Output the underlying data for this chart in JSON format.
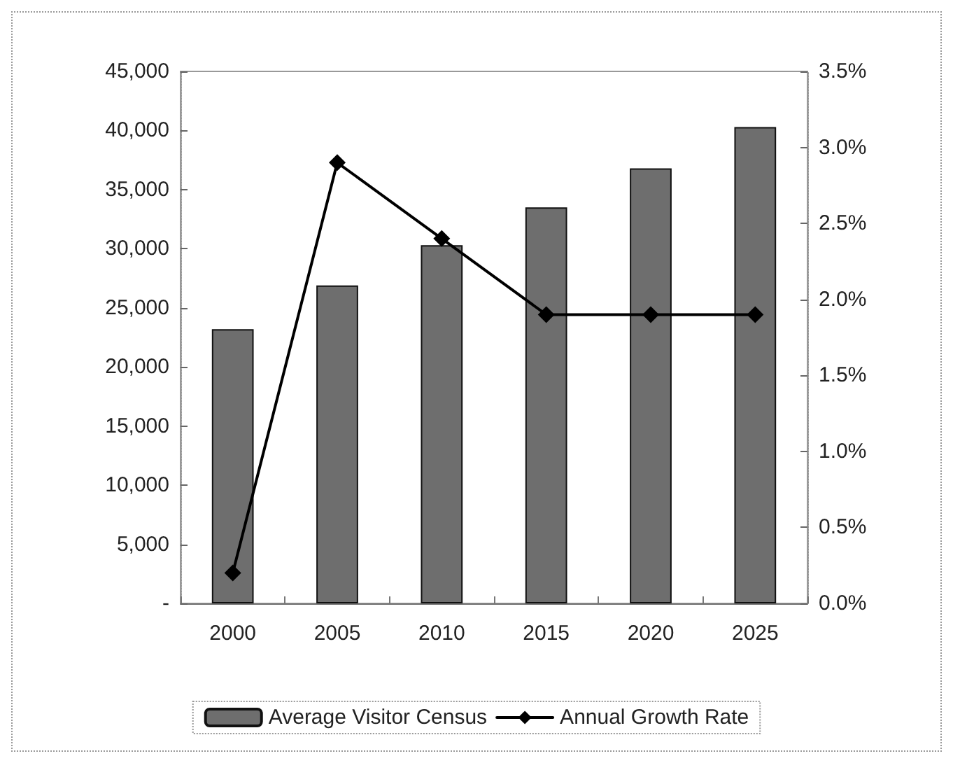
{
  "chart_data": {
    "type": "bar",
    "categories": [
      "2000",
      "2005",
      "2010",
      "2015",
      "2020",
      "2025"
    ],
    "series": [
      {
        "name": "Average Visitor Census",
        "color": "#6e6e6e",
        "values": [
          23200,
          26900,
          30300,
          33500,
          36800,
          40300
        ]
      },
      {
        "name": "Annual Growth Rate",
        "type": "line",
        "axis": "y2",
        "color": "#000000",
        "values": [
          0.2,
          2.9,
          2.4,
          1.9,
          1.9,
          1.9
        ]
      }
    ],
    "ylim": [
      0,
      45000
    ],
    "yticks": [
      {
        "value": 0,
        "label": "-"
      },
      {
        "value": 5000,
        "label": "5,000"
      },
      {
        "value": 10000,
        "label": "10,000"
      },
      {
        "value": 15000,
        "label": "15,000"
      },
      {
        "value": 20000,
        "label": "20,000"
      },
      {
        "value": 25000,
        "label": "25,000"
      },
      {
        "value": 30000,
        "label": "30,000"
      },
      {
        "value": 35000,
        "label": "35,000"
      },
      {
        "value": 40000,
        "label": "40,000"
      },
      {
        "value": 45000,
        "label": "45,000"
      }
    ],
    "y2lim": [
      0,
      3.5
    ],
    "y2ticks": [
      {
        "value": 0,
        "label": "0.0%"
      },
      {
        "value": 0.5,
        "label": "0.5%"
      },
      {
        "value": 1,
        "label": "1.0%"
      },
      {
        "value": 1.5,
        "label": "1.5%"
      },
      {
        "value": 2,
        "label": "2.0%"
      },
      {
        "value": 2.5,
        "label": "2.5%"
      },
      {
        "value": 3,
        "label": "3.0%"
      },
      {
        "value": 3.5,
        "label": "3.5%"
      }
    ],
    "grid": false,
    "legend": "bottom",
    "marker": "diamond",
    "line_style": "solid"
  }
}
